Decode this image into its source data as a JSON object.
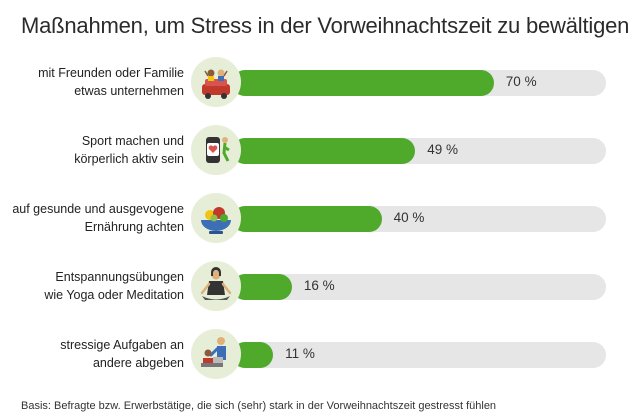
{
  "chart_data": {
    "type": "bar",
    "orientation": "horizontal",
    "title": "Maßnahmen, um Stress in der Vorweihnachtszeit zu bewältigen",
    "categories": [
      "mit Freunden oder Familie etwas unternehmen",
      "Sport machen und körperlich aktiv sein",
      "auf gesunde und ausgevogene Ernährung achten",
      "Entspannungsübungen wie Yoga oder Meditation",
      "stressige Aufgaben an andere abgeben"
    ],
    "values": [
      70,
      49,
      40,
      16,
      11
    ],
    "unit": "%",
    "xlim": [
      0,
      100
    ],
    "bar_color": "#4faa2c",
    "track_color": "#e6e6e6"
  },
  "rows": [
    {
      "line1": "mit Freunden oder Familie",
      "line2": "etwas unternehmen",
      "value_label": "70 %",
      "icon": "friends-in-car-icon"
    },
    {
      "line1": "Sport machen und",
      "line2": "körperlich aktiv sein",
      "value_label": "49 %",
      "icon": "fitness-tracker-icon"
    },
    {
      "line1": "auf gesunde und ausgevogene",
      "line2": "Ernährung achten",
      "value_label": "40 %",
      "icon": "healthy-food-bowl-icon"
    },
    {
      "line1": "Entspannungsübungen",
      "line2": "wie Yoga oder Meditation",
      "value_label": "16 %",
      "icon": "yoga-meditation-icon"
    },
    {
      "line1": "stressige Aufgaben an",
      "line2": "andere abgeben",
      "value_label": "11 %",
      "icon": "delegate-task-icon"
    }
  ],
  "footnote": "Basis: Befragte bzw. Erwerbstätige, die sich (sehr) stark in der Vorweihnachtszeit gestresst fühlen"
}
